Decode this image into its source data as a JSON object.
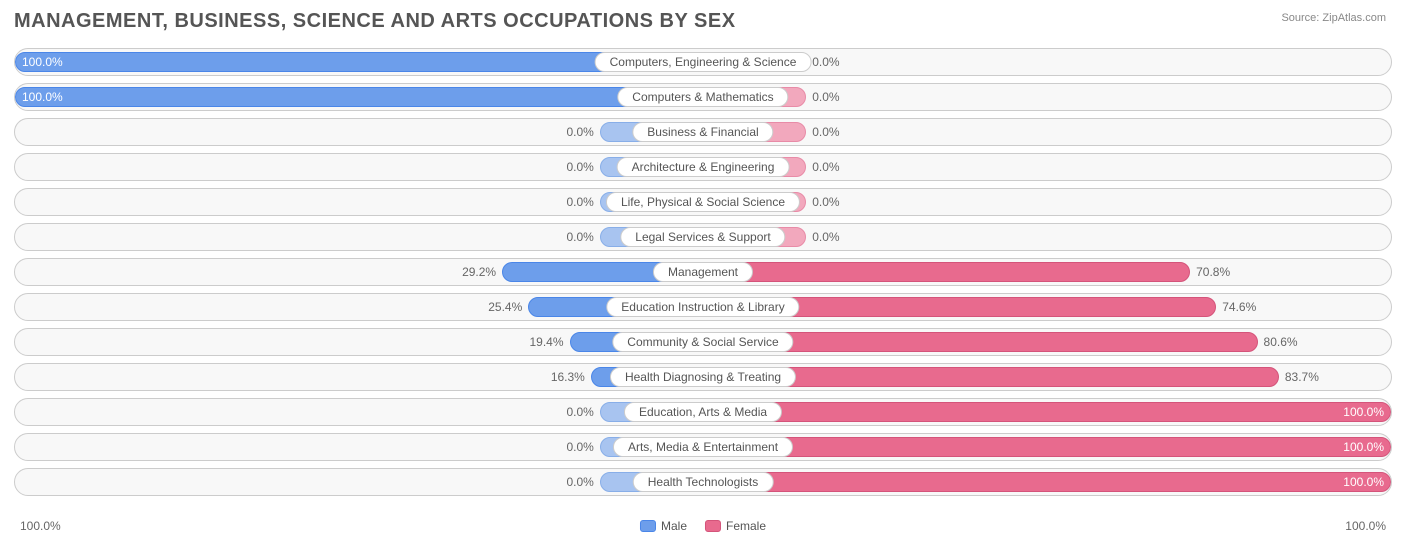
{
  "title": "MANAGEMENT, BUSINESS, SCIENCE AND ARTS OCCUPATIONS BY SEX",
  "source": {
    "label": "Source:",
    "site": "ZipAtlas.com"
  },
  "colors": {
    "male_fill": "#6d9eeb",
    "male_border": "#4a86e8",
    "female_fill": "#e86a8e",
    "female_border": "#d4547a",
    "male_light_fill": "#a8c4f0",
    "male_light_border": "#88aee8",
    "female_light_fill": "#f2a8bd",
    "female_light_border": "#e88ba7",
    "track_bg": "#f8f8f8",
    "track_border": "#cccccc",
    "label_bg": "#ffffff",
    "text": "#666666"
  },
  "chart": {
    "type": "diverging-bar",
    "min_bar_pct": 15,
    "axis": {
      "left": "100.0%",
      "right": "100.0%"
    },
    "legend": [
      {
        "label": "Male",
        "color_key": "male"
      },
      {
        "label": "Female",
        "color_key": "female"
      }
    ],
    "rows": [
      {
        "category": "Computers, Engineering & Science",
        "male": 100.0,
        "female": 0.0
      },
      {
        "category": "Computers & Mathematics",
        "male": 100.0,
        "female": 0.0
      },
      {
        "category": "Business & Financial",
        "male": 0.0,
        "female": 0.0
      },
      {
        "category": "Architecture & Engineering",
        "male": 0.0,
        "female": 0.0
      },
      {
        "category": "Life, Physical & Social Science",
        "male": 0.0,
        "female": 0.0
      },
      {
        "category": "Legal Services & Support",
        "male": 0.0,
        "female": 0.0
      },
      {
        "category": "Management",
        "male": 29.2,
        "female": 70.8
      },
      {
        "category": "Education Instruction & Library",
        "male": 25.4,
        "female": 74.6
      },
      {
        "category": "Community & Social Service",
        "male": 19.4,
        "female": 80.6
      },
      {
        "category": "Health Diagnosing & Treating",
        "male": 16.3,
        "female": 83.7
      },
      {
        "category": "Education, Arts & Media",
        "male": 0.0,
        "female": 100.0
      },
      {
        "category": "Arts, Media & Entertainment",
        "male": 0.0,
        "female": 100.0
      },
      {
        "category": "Health Technologists",
        "male": 0.0,
        "female": 100.0
      }
    ]
  }
}
